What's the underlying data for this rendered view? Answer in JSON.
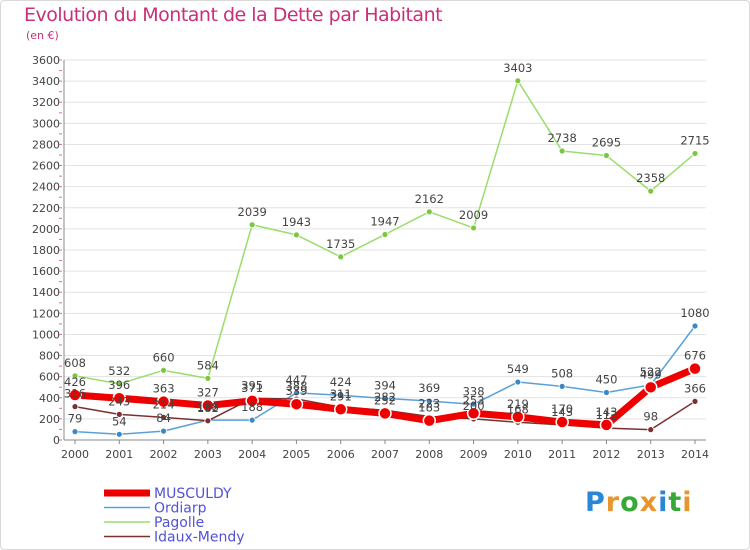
{
  "title": "Evolution du Montant de la Dette par Habitant",
  "unit": "(en €)",
  "logo": {
    "text": "Proxiti",
    "colors": [
      "#2a86d6",
      "#e8962b",
      "#38a838",
      "#e8962b",
      "#2a86d6",
      "#38a838",
      "#e8962b"
    ]
  },
  "chart_data": {
    "type": "line",
    "x": [
      "2000",
      "2001",
      "2002",
      "2003",
      "2004",
      "2005",
      "2006",
      "2007",
      "2008",
      "2009",
      "2010",
      "2011",
      "2012",
      "2013",
      "2014"
    ],
    "ylim": [
      0,
      3600
    ],
    "yticks": [
      0,
      200,
      400,
      600,
      800,
      1000,
      1200,
      1400,
      1600,
      1800,
      2000,
      2200,
      2400,
      2600,
      2800,
      3000,
      3200,
      3400,
      3600
    ],
    "grid": "horizontal",
    "legend_position": "bottom-left",
    "series": [
      {
        "name": "Pagolle",
        "color": "#99dd6a",
        "marker": "#7cc642",
        "width": 1.5,
        "values": [
          608,
          532,
          660,
          584,
          2039,
          1943,
          1735,
          1947,
          2162,
          2009,
          3403,
          2738,
          2695,
          2358,
          2715
        ]
      },
      {
        "name": "Ordiarp",
        "color": "#5aa0d8",
        "marker": "#3a88c8",
        "width": 1.5,
        "values": [
          79,
          54,
          84,
          188,
          188,
          447,
          424,
          394,
          369,
          338,
          549,
          508,
          450,
          522,
          1080
        ]
      },
      {
        "name": "Idaux-Mendy",
        "color": "#7a3030",
        "marker": "#7a3030",
        "width": 1.5,
        "values": [
          316,
          243,
          214,
          182,
          395,
          388,
          311,
          282,
          223,
          200,
          168,
          143,
          113,
          98,
          366
        ]
      },
      {
        "name": "MUSCULDY",
        "color": "#ee0000",
        "marker": "#ee0000",
        "width": 7,
        "values": [
          426,
          396,
          363,
          327,
          371,
          339,
          291,
          252,
          183,
          253,
          219,
          170,
          143,
          499,
          676
        ]
      }
    ],
    "legend_order": [
      "MUSCULDY",
      "Ordiarp",
      "Pagolle",
      "Idaux-Mendy"
    ],
    "legend_color": "#5252d8"
  }
}
